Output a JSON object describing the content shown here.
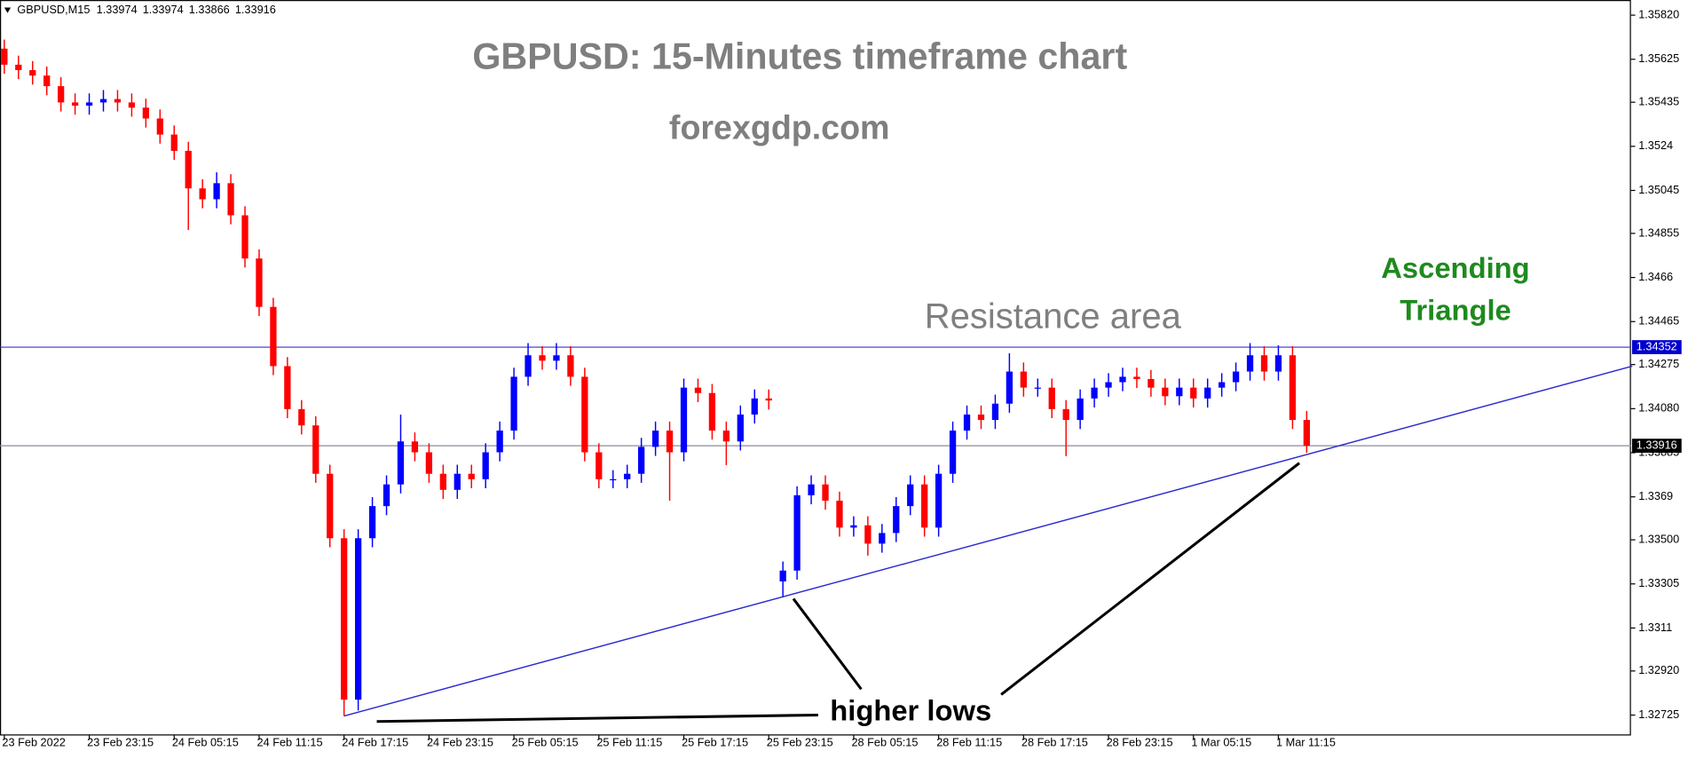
{
  "chart_data": {
    "type": "candlestick",
    "header": {
      "symbol": "GBPUSD,M15",
      "ohlc": [
        1.33974,
        1.33974,
        1.33866,
        1.33916
      ]
    },
    "title": "GBPUSD: 15-Minutes timeframe chart",
    "subtitle": "forexgdp.com",
    "annotations": {
      "resistance": "Resistance area",
      "pattern": [
        "Ascending",
        "Triangle"
      ],
      "lows": "higher lows"
    },
    "categories": [
      "23 Feb 2022",
      null,
      null,
      null,
      null,
      null,
      "23 Feb 23:15",
      null,
      null,
      null,
      null,
      null,
      "24 Feb 05:15",
      null,
      null,
      null,
      null,
      null,
      "24 Feb 11:15",
      null,
      null,
      null,
      null,
      null,
      "24 Feb 17:15",
      null,
      null,
      null,
      null,
      null,
      "24 Feb 23:15",
      null,
      null,
      null,
      null,
      null,
      "25 Feb 05:15",
      null,
      null,
      null,
      null,
      null,
      "25 Feb 11:15",
      null,
      null,
      null,
      null,
      null,
      "25 Feb 17:15",
      null,
      null,
      null,
      null,
      null,
      "25 Feb 23:15",
      null,
      null,
      null,
      null,
      null,
      "28 Feb 05:15",
      null,
      null,
      null,
      null,
      null,
      "28 Feb 11:15",
      null,
      null,
      null,
      null,
      null,
      "28 Feb 17:15",
      null,
      null,
      null,
      null,
      null,
      "28 Feb 23:15",
      null,
      null,
      null,
      null,
      null,
      "1 Mar 05:15",
      null,
      null,
      null,
      null,
      null,
      "1 Mar 11:15",
      null,
      null
    ],
    "open": [
      1.35672,
      1.35601,
      1.35577,
      1.35553,
      1.35506,
      1.35434,
      1.3542,
      1.35434,
      1.35449,
      1.35434,
      1.35411,
      1.35363,
      1.35292,
      1.3522,
      1.35054,
      1.35006,
      1.35077,
      1.34935,
      1.34744,
      1.3453,
      1.34268,
      1.34078,
      1.34006,
      1.33792,
      1.33507,
      1.32793,
      1.33507,
      1.33649,
      1.33745,
      1.33935,
      1.33887,
      1.33792,
      1.33721,
      1.33792,
      1.33768,
      1.33887,
      1.33983,
      1.34221,
      1.34316,
      1.34292,
      1.34316,
      1.34221,
      1.33887,
      1.33768,
      1.33768,
      1.33792,
      1.33911,
      1.33983,
      1.33887,
      1.34173,
      1.34149,
      1.33983,
      1.33935,
      1.34054,
      1.34125,
      1.33316,
      1.33364,
      1.33697,
      1.33745,
      1.33673,
      1.33554,
      1.33564,
      1.33483,
      1.3353,
      1.33649,
      1.33745,
      1.33554,
      1.33792,
      1.33983,
      1.34054,
      1.3403,
      1.34102,
      1.34244,
      1.34173,
      1.34173,
      1.34078,
      1.3403,
      1.34125,
      1.34173,
      1.34197,
      1.34221,
      1.34211,
      1.34173,
      1.34135,
      1.34173,
      1.34125,
      1.34173,
      1.34197,
      1.34244,
      1.34316,
      1.34244,
      1.34316,
      1.3403
    ],
    "high": [
      1.35712,
      1.35641,
      1.35617,
      1.35593,
      1.35546,
      1.35474,
      1.35474,
      1.35489,
      1.35489,
      1.35474,
      1.35451,
      1.35403,
      1.35332,
      1.3526,
      1.35094,
      1.35125,
      1.35117,
      1.34975,
      1.34784,
      1.3457,
      1.34308,
      1.34118,
      1.34046,
      1.33832,
      1.33547,
      1.33547,
      1.33689,
      1.33785,
      1.34054,
      1.33975,
      1.33927,
      1.33832,
      1.33832,
      1.33832,
      1.33927,
      1.34023,
      1.34261,
      1.3437,
      1.34356,
      1.3437,
      1.34356,
      1.34261,
      1.33927,
      1.33808,
      1.33832,
      1.33951,
      1.34023,
      1.34023,
      1.34213,
      1.34213,
      1.34189,
      1.34023,
      1.34094,
      1.34165,
      1.34165,
      1.33404,
      1.33737,
      1.33785,
      1.33785,
      1.33713,
      1.33604,
      1.33604,
      1.3357,
      1.33689,
      1.33785,
      1.33785,
      1.33832,
      1.34023,
      1.34094,
      1.34094,
      1.34142,
      1.34325,
      1.34284,
      1.34213,
      1.34213,
      1.34118,
      1.34165,
      1.34213,
      1.34237,
      1.34261,
      1.34261,
      1.34251,
      1.34213,
      1.34213,
      1.34213,
      1.34213,
      1.34237,
      1.34284,
      1.3437,
      1.34356,
      1.3436,
      1.34356,
      1.3407
    ],
    "low": [
      1.35561,
      1.35537,
      1.35513,
      1.35466,
      1.35394,
      1.3538,
      1.3538,
      1.35394,
      1.35394,
      1.35371,
      1.35323,
      1.35252,
      1.3518,
      1.3487,
      1.34966,
      1.34966,
      1.34895,
      1.34704,
      1.3449,
      1.34228,
      1.34038,
      1.33966,
      1.33752,
      1.33467,
      1.32721,
      1.32745,
      1.33467,
      1.33609,
      1.33705,
      1.33847,
      1.33752,
      1.33681,
      1.33681,
      1.33728,
      1.33728,
      1.33847,
      1.33943,
      1.34181,
      1.34252,
      1.34252,
      1.34181,
      1.33847,
      1.33728,
      1.33728,
      1.33728,
      1.33752,
      1.33871,
      1.33673,
      1.33847,
      1.34109,
      1.33943,
      1.3383,
      1.33895,
      1.34014,
      1.34076,
      1.33245,
      1.33324,
      1.33657,
      1.33633,
      1.33514,
      1.33514,
      1.3343,
      1.33443,
      1.3349,
      1.33609,
      1.33514,
      1.33514,
      1.33752,
      1.33943,
      1.3399,
      1.3399,
      1.34062,
      1.34133,
      1.34133,
      1.34038,
      1.3387,
      1.3399,
      1.34085,
      1.34133,
      1.34157,
      1.34171,
      1.34133,
      1.34095,
      1.34095,
      1.34085,
      1.34085,
      1.34133,
      1.34157,
      1.34204,
      1.34204,
      1.34204,
      1.3399,
      1.33885
    ],
    "close": [
      1.35601,
      1.35577,
      1.35553,
      1.35506,
      1.35434,
      1.3542,
      1.35434,
      1.35449,
      1.35434,
      1.35411,
      1.35363,
      1.35292,
      1.3522,
      1.35054,
      1.35006,
      1.35077,
      1.34935,
      1.34744,
      1.3453,
      1.34268,
      1.34078,
      1.34006,
      1.33792,
      1.33507,
      1.32793,
      1.33507,
      1.33649,
      1.33745,
      1.33935,
      1.33887,
      1.33792,
      1.33721,
      1.33792,
      1.33768,
      1.33887,
      1.33983,
      1.34221,
      1.34316,
      1.34292,
      1.34316,
      1.34221,
      1.33887,
      1.33768,
      1.33768,
      1.33792,
      1.33911,
      1.33983,
      1.33887,
      1.34173,
      1.34149,
      1.33983,
      1.33935,
      1.34054,
      1.34125,
      1.34116,
      1.33364,
      1.33697,
      1.33745,
      1.33673,
      1.33554,
      1.33564,
      1.33483,
      1.3353,
      1.33649,
      1.33745,
      1.33554,
      1.33792,
      1.33983,
      1.34054,
      1.3403,
      1.34102,
      1.34244,
      1.34173,
      1.34173,
      1.34078,
      1.3403,
      1.34125,
      1.34173,
      1.34197,
      1.34221,
      1.34211,
      1.34173,
      1.34135,
      1.34173,
      1.34125,
      1.34173,
      1.34197,
      1.34244,
      1.34316,
      1.34244,
      1.34316,
      1.3403,
      1.33916
    ],
    "up_color": "#0000ff",
    "down_color": "#ff0000",
    "ylim": [
      1.32649,
      1.35887
    ],
    "yticks": [
      {
        "value": 1.3582,
        "label": "1.35820"
      },
      1.35625,
      1.35435,
      1.3524,
      1.35045,
      1.34855,
      1.3466,
      1.34465,
      1.34275,
      {
        "value": 1.3408,
        "label": "1.34080"
      },
      1.33885,
      1.3369,
      {
        "value": 1.335,
        "label": "1.33500"
      },
      1.33305,
      1.3311,
      {
        "value": 1.3292,
        "label": "1.32920"
      },
      1.32725
    ],
    "hlines": [
      {
        "value": 1.34352,
        "color": "#3333cc",
        "tag_color": "#0000cd"
      },
      {
        "value": 1.33916,
        "color": "#8c8c9c",
        "tag_color": "#000000"
      }
    ],
    "trendline": {
      "points": [
        [
          24,
          1.32721
        ],
        [
          115,
          1.34268
        ]
      ],
      "color": "#2a2ad0"
    }
  }
}
